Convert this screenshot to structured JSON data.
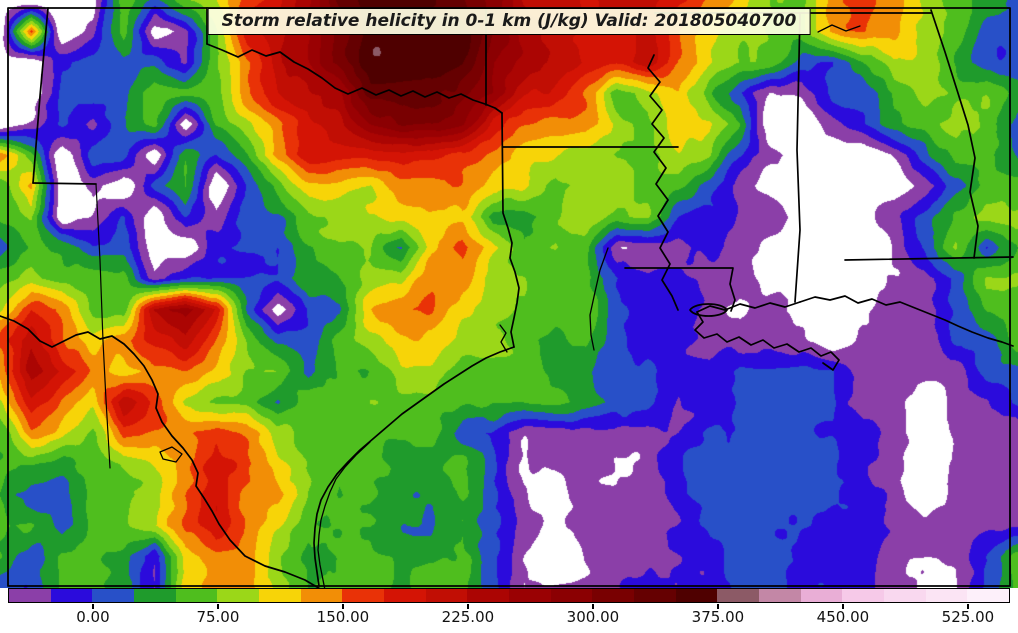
{
  "title": {
    "text": "Storm relative helicity in 0-1 km (J/kg) Valid: 201805040700"
  },
  "colorbar": {
    "orientation": "horizontal",
    "min": -50,
    "max": 550,
    "step": 25,
    "tick_values": [
      0,
      75,
      150,
      225,
      300,
      375,
      450,
      525
    ],
    "tick_labels": [
      "0.00",
      "75.00",
      "150.00",
      "225.00",
      "300.00",
      "375.00",
      "450.00",
      "525.00"
    ],
    "below_min_color": "#ffffff",
    "colors": [
      "#8B3FA8",
      "#2B0BDC",
      "#2850C8",
      "#1F9B2C",
      "#4FBE1E",
      "#9BD718",
      "#F7D408",
      "#F28E06",
      "#E93207",
      "#D41405",
      "#C10E04",
      "#AB0503",
      "#9A0103",
      "#8B0002",
      "#790001",
      "#650001",
      "#4F0000",
      "#8C5A66",
      "#C387A6",
      "#E9AED6",
      "#F6C9E8",
      "#F9D8EF",
      "#FBE4F4",
      "#FDF0FA"
    ]
  },
  "chart_data": {
    "type": "heatmap",
    "variable": "Storm relative helicity in 0-1 km",
    "units": "J/kg",
    "valid": "201805040700",
    "levels": [
      -50,
      -25,
      0,
      25,
      50,
      75,
      100,
      125,
      150,
      175,
      200,
      225,
      250,
      275,
      300,
      325,
      350,
      375,
      400,
      425,
      450,
      475,
      500,
      525,
      550
    ],
    "grid_note": "coarse helicity field (J/kg), 20 rows x 34 cols, row 0 = map top, values below -50 render white",
    "grid": [
      [
        -40,
        -75,
        -75,
        -75,
        60,
        10,
        60,
        85,
        162,
        190,
        240,
        335,
        360,
        360,
        360,
        335,
        300,
        240,
        215,
        190,
        215,
        215,
        190,
        140,
        110,
        60,
        60,
        140,
        162,
        140,
        85,
        60,
        38,
        10
      ],
      [
        -75,
        162,
        -75,
        -40,
        60,
        -75,
        -40,
        60,
        190,
        215,
        240,
        300,
        360,
        360,
        360,
        360,
        300,
        240,
        215,
        190,
        190,
        215,
        140,
        110,
        85,
        60,
        60,
        140,
        162,
        140,
        85,
        60,
        10,
        10
      ],
      [
        -75,
        -75,
        10,
        10,
        10,
        10,
        -40,
        60,
        140,
        215,
        240,
        300,
        360,
        360,
        360,
        335,
        270,
        240,
        215,
        190,
        190,
        215,
        140,
        110,
        85,
        60,
        10,
        10,
        60,
        110,
        85,
        38,
        10,
        10
      ],
      [
        -75,
        -75,
        10,
        10,
        10,
        60,
        60,
        60,
        140,
        190,
        215,
        240,
        335,
        335,
        335,
        300,
        270,
        215,
        190,
        140,
        60,
        85,
        110,
        60,
        10,
        -40,
        -40,
        10,
        10,
        60,
        85,
        60,
        60,
        38
      ],
      [
        -75,
        -40,
        10,
        -40,
        10,
        60,
        -75,
        60,
        85,
        140,
        190,
        215,
        270,
        300,
        300,
        270,
        190,
        162,
        140,
        140,
        85,
        60,
        110,
        110,
        60,
        -75,
        -75,
        -40,
        10,
        60,
        60,
        85,
        60,
        10
      ],
      [
        140,
        60,
        -75,
        10,
        10,
        -75,
        60,
        10,
        60,
        140,
        190,
        190,
        190,
        190,
        190,
        162,
        140,
        110,
        110,
        85,
        60,
        60,
        85,
        85,
        10,
        -40,
        -75,
        -75,
        -75,
        -40,
        10,
        60,
        60,
        10
      ],
      [
        60,
        140,
        -75,
        -40,
        -75,
        10,
        60,
        -75,
        10,
        60,
        110,
        110,
        110,
        140,
        140,
        140,
        110,
        110,
        60,
        85,
        85,
        60,
        60,
        10,
        -40,
        -75,
        -75,
        -75,
        -75,
        -75,
        -40,
        10,
        60,
        60
      ],
      [
        60,
        85,
        -75,
        -40,
        10,
        -75,
        10,
        -40,
        10,
        10,
        60,
        85,
        110,
        110,
        110,
        110,
        38,
        38,
        60,
        85,
        60,
        85,
        10,
        -15,
        -40,
        -40,
        -75,
        -75,
        -75,
        -40,
        10,
        60,
        85,
        85
      ],
      [
        10,
        60,
        60,
        10,
        10,
        -75,
        -75,
        10,
        10,
        10,
        60,
        85,
        85,
        10,
        110,
        162,
        110,
        60,
        85,
        60,
        -40,
        -40,
        -40,
        -15,
        -40,
        -75,
        -75,
        -75,
        -75,
        -40,
        10,
        85,
        10,
        60
      ],
      [
        60,
        85,
        60,
        60,
        60,
        -40,
        10,
        10,
        10,
        10,
        60,
        60,
        85,
        85,
        140,
        140,
        85,
        85,
        60,
        60,
        10,
        -15,
        -15,
        -40,
        -40,
        -75,
        -75,
        -75,
        -75,
        -40,
        -40,
        10,
        85,
        85
      ],
      [
        85,
        162,
        140,
        60,
        60,
        240,
        270,
        190,
        10,
        -75,
        10,
        10,
        110,
        140,
        140,
        110,
        85,
        85,
        60,
        60,
        10,
        -15,
        -15,
        -40,
        -75,
        -40,
        -75,
        -75,
        -75,
        -40,
        -40,
        10,
        60,
        60
      ],
      [
        162,
        215,
        140,
        110,
        140,
        190,
        215,
        140,
        60,
        10,
        10,
        60,
        85,
        110,
        110,
        85,
        85,
        60,
        38,
        60,
        10,
        -15,
        -15,
        -40,
        -40,
        -40,
        -40,
        -75,
        -40,
        -40,
        -40,
        10,
        10,
        60
      ],
      [
        140,
        240,
        190,
        140,
        110,
        140,
        140,
        110,
        60,
        60,
        10,
        60,
        60,
        85,
        85,
        60,
        60,
        60,
        38,
        38,
        10,
        10,
        -15,
        -15,
        10,
        10,
        10,
        10,
        -40,
        -40,
        -40,
        -40,
        10,
        10
      ],
      [
        110,
        190,
        140,
        110,
        215,
        162,
        85,
        60,
        60,
        10,
        60,
        60,
        85,
        60,
        60,
        60,
        60,
        60,
        60,
        38,
        10,
        10,
        -15,
        -15,
        10,
        10,
        10,
        10,
        -40,
        -40,
        -75,
        -40,
        -40,
        10
      ],
      [
        60,
        140,
        110,
        60,
        162,
        140,
        140,
        162,
        140,
        85,
        60,
        60,
        60,
        60,
        60,
        10,
        10,
        -40,
        -40,
        -40,
        -40,
        -40,
        -15,
        10,
        10,
        10,
        10,
        10,
        -15,
        -40,
        -75,
        -40,
        -40,
        -40
      ],
      [
        60,
        60,
        38,
        60,
        85,
        110,
        140,
        190,
        162,
        110,
        85,
        60,
        60,
        38,
        38,
        60,
        10,
        -40,
        -40,
        -40,
        -40,
        -40,
        -15,
        10,
        10,
        10,
        10,
        10,
        -15,
        -40,
        -75,
        -40,
        -40,
        -40
      ],
      [
        60,
        10,
        10,
        60,
        60,
        85,
        140,
        190,
        140,
        140,
        85,
        60,
        60,
        38,
        38,
        60,
        10,
        -40,
        -75,
        -40,
        -40,
        -40,
        -15,
        10,
        10,
        10,
        10,
        10,
        -15,
        -40,
        -75,
        -40,
        -40,
        -40
      ],
      [
        60,
        60,
        10,
        60,
        60,
        85,
        140,
        190,
        140,
        110,
        60,
        60,
        60,
        38,
        38,
        60,
        10,
        -40,
        -75,
        -40,
        -40,
        -40,
        -15,
        10,
        10,
        10,
        10,
        -15,
        -15,
        -40,
        -40,
        -40,
        -40,
        -40
      ],
      [
        60,
        10,
        60,
        60,
        38,
        -40,
        110,
        140,
        140,
        85,
        60,
        60,
        60,
        38,
        38,
        60,
        10,
        -40,
        -75,
        -40,
        -40,
        -40,
        -15,
        -15,
        10,
        10,
        -15,
        -15,
        -15,
        -40,
        -40,
        -40,
        10,
        60
      ],
      [
        10,
        10,
        60,
        60,
        38,
        -40,
        110,
        140,
        140,
        85,
        60,
        60,
        60,
        38,
        60,
        60,
        10,
        -40,
        -40,
        -40,
        -40,
        -15,
        -15,
        -15,
        10,
        10,
        -15,
        -15,
        -15,
        -40,
        -40,
        -40,
        10,
        60
      ]
    ]
  }
}
